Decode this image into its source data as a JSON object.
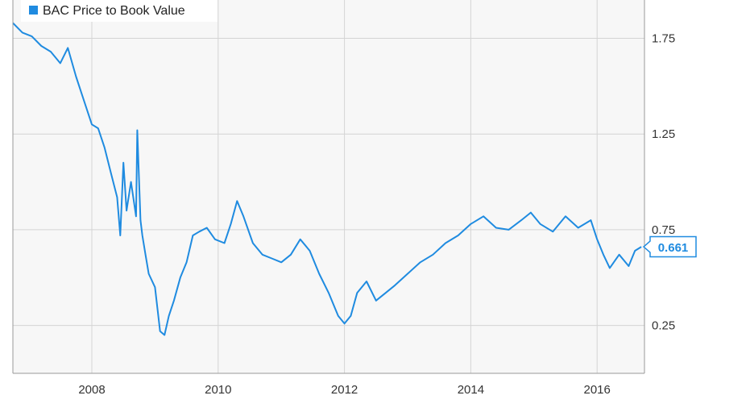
{
  "chart_data": {
    "type": "line",
    "title": "",
    "xlabel": "",
    "ylabel": "",
    "xlim": [
      2006.75,
      2016.75
    ],
    "ylim": [
      0.0,
      1.95
    ],
    "x_ticks": [
      2008,
      2010,
      2012,
      2014,
      2016
    ],
    "x_tick_labels": [
      "2008",
      "2010",
      "2012",
      "2014",
      "2016"
    ],
    "y_ticks": [
      0.25,
      0.75,
      1.25,
      1.75
    ],
    "y_tick_labels": [
      "0.25",
      "0.75",
      "1.25",
      "1.75"
    ],
    "y_axis_side": "right",
    "grid": true,
    "legend_position": "top-left",
    "last_value_label": "0.661",
    "series": [
      {
        "name": "BAC Price to Book Value",
        "color": "#1f8be0",
        "x": [
          2006.75,
          2006.9,
          2007.05,
          2007.2,
          2007.35,
          2007.5,
          2007.62,
          2007.75,
          2007.85,
          2008.0,
          2008.1,
          2008.2,
          2008.3,
          2008.4,
          2008.45,
          2008.5,
          2008.55,
          2008.62,
          2008.7,
          2008.72,
          2008.77,
          2008.8,
          2008.85,
          2008.9,
          2009.0,
          2009.08,
          2009.15,
          2009.22,
          2009.3,
          2009.4,
          2009.5,
          2009.6,
          2009.7,
          2009.82,
          2009.95,
          2010.1,
          2010.2,
          2010.3,
          2010.4,
          2010.55,
          2010.7,
          2010.85,
          2011.0,
          2011.15,
          2011.3,
          2011.45,
          2011.6,
          2011.75,
          2011.9,
          2012.0,
          2012.1,
          2012.2,
          2012.35,
          2012.5,
          2012.65,
          2012.8,
          2013.0,
          2013.2,
          2013.4,
          2013.6,
          2013.8,
          2014.0,
          2014.2,
          2014.4,
          2014.6,
          2014.8,
          2014.95,
          2015.1,
          2015.3,
          2015.5,
          2015.7,
          2015.9,
          2016.0,
          2016.1,
          2016.2,
          2016.35,
          2016.5,
          2016.6,
          2016.7
        ],
        "values": [
          1.83,
          1.78,
          1.76,
          1.71,
          1.68,
          1.62,
          1.7,
          1.55,
          1.45,
          1.3,
          1.28,
          1.18,
          1.05,
          0.92,
          0.72,
          1.1,
          0.85,
          1.0,
          0.82,
          1.27,
          0.8,
          0.72,
          0.62,
          0.52,
          0.45,
          0.22,
          0.2,
          0.3,
          0.38,
          0.5,
          0.58,
          0.72,
          0.74,
          0.76,
          0.7,
          0.68,
          0.78,
          0.9,
          0.82,
          0.68,
          0.62,
          0.6,
          0.58,
          0.62,
          0.7,
          0.64,
          0.52,
          0.42,
          0.3,
          0.26,
          0.3,
          0.42,
          0.48,
          0.38,
          0.42,
          0.46,
          0.52,
          0.58,
          0.62,
          0.68,
          0.72,
          0.78,
          0.82,
          0.76,
          0.75,
          0.8,
          0.84,
          0.78,
          0.74,
          0.82,
          0.76,
          0.8,
          0.7,
          0.62,
          0.55,
          0.62,
          0.56,
          0.64,
          0.661
        ]
      }
    ]
  }
}
